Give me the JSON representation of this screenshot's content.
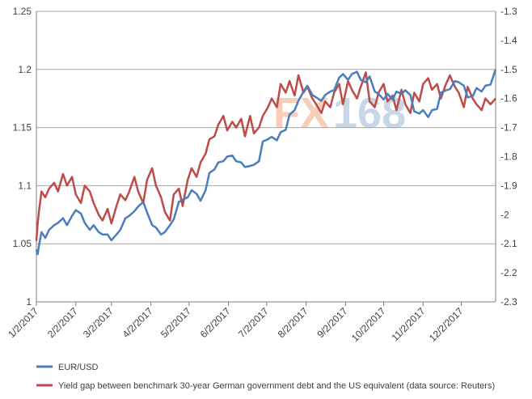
{
  "chart_data": {
    "type": "line",
    "watermark": "FX168",
    "colors": {
      "eurusd": "#4a7ebb",
      "yield_gap": "#be4b48",
      "grid": "#a6a6a6",
      "axis": "#808080"
    },
    "left_axis": {
      "ylim": [
        1.0,
        1.25
      ],
      "ticks": [
        "1.25",
        "1.2",
        "1.15",
        "1.1",
        "1.05",
        "1"
      ]
    },
    "right_axis": {
      "ylim": [
        -2.3,
        -1.3
      ],
      "ticks": [
        "-1.3",
        "-1.4",
        "-1.5",
        "-1.6",
        "-1.7",
        "-1.8",
        "-1.9",
        "-2",
        "-2.1",
        "-2.2",
        "-2.3"
      ]
    },
    "x_axis": {
      "xlim": [
        "2017-01-02",
        "2017-12-29"
      ],
      "tick_labels": [
        "1/2/2017",
        "2/2/2017",
        "3/2/2017",
        "4/2/2017",
        "5/2/2017",
        "6/2/2017",
        "7/2/2017",
        "8/2/2017",
        "9/2/2017",
        "10/2/2017",
        "11/2/2017",
        "12/2/2017"
      ]
    },
    "legend": {
      "position": "bottom"
    },
    "series": [
      {
        "name": "EUR/USD",
        "axis": "left",
        "x": [
          "2017-01-02",
          "2017-01-03",
          "2017-01-04",
          "2017-01-06",
          "2017-01-09",
          "2017-01-12",
          "2017-01-16",
          "2017-01-19",
          "2017-01-23",
          "2017-01-26",
          "2017-01-30",
          "2017-02-02",
          "2017-02-06",
          "2017-02-09",
          "2017-02-13",
          "2017-02-16",
          "2017-02-20",
          "2017-02-23",
          "2017-02-27",
          "2017-03-02",
          "2017-03-06",
          "2017-03-09",
          "2017-03-13",
          "2017-03-16",
          "2017-03-20",
          "2017-03-23",
          "2017-03-27",
          "2017-03-30",
          "2017-04-03",
          "2017-04-06",
          "2017-04-10",
          "2017-04-13",
          "2017-04-17",
          "2017-04-20",
          "2017-04-24",
          "2017-04-27",
          "2017-05-01",
          "2017-05-04",
          "2017-05-08",
          "2017-05-11",
          "2017-05-15",
          "2017-05-18",
          "2017-05-22",
          "2017-05-25",
          "2017-05-29",
          "2017-06-01",
          "2017-06-05",
          "2017-06-08",
          "2017-06-12",
          "2017-06-15",
          "2017-06-19",
          "2017-06-22",
          "2017-06-26",
          "2017-06-29",
          "2017-07-03",
          "2017-07-06",
          "2017-07-10",
          "2017-07-13",
          "2017-07-17",
          "2017-07-20",
          "2017-07-24",
          "2017-07-27",
          "2017-07-31",
          "2017-08-03",
          "2017-08-07",
          "2017-08-10",
          "2017-08-14",
          "2017-08-17",
          "2017-08-21",
          "2017-08-24",
          "2017-08-28",
          "2017-08-31",
          "2017-09-04",
          "2017-09-07",
          "2017-09-11",
          "2017-09-14",
          "2017-09-18",
          "2017-09-21",
          "2017-09-25",
          "2017-09-28",
          "2017-10-02",
          "2017-10-05",
          "2017-10-09",
          "2017-10-12",
          "2017-10-16",
          "2017-10-19",
          "2017-10-23",
          "2017-10-26",
          "2017-10-30",
          "2017-11-02",
          "2017-11-06",
          "2017-11-09",
          "2017-11-13",
          "2017-11-16",
          "2017-11-20",
          "2017-11-23",
          "2017-11-27",
          "2017-11-30",
          "2017-12-04",
          "2017-12-07",
          "2017-12-11",
          "2017-12-14",
          "2017-12-18",
          "2017-12-21",
          "2017-12-25",
          "2017-12-29"
        ],
        "values": [
          1.045,
          1.041,
          1.048,
          1.06,
          1.055,
          1.062,
          1.066,
          1.068,
          1.072,
          1.066,
          1.074,
          1.079,
          1.076,
          1.068,
          1.062,
          1.066,
          1.06,
          1.058,
          1.058,
          1.053,
          1.058,
          1.062,
          1.072,
          1.074,
          1.078,
          1.082,
          1.086,
          1.077,
          1.066,
          1.064,
          1.058,
          1.06,
          1.066,
          1.071,
          1.086,
          1.088,
          1.09,
          1.096,
          1.093,
          1.087,
          1.096,
          1.111,
          1.114,
          1.12,
          1.121,
          1.125,
          1.126,
          1.121,
          1.12,
          1.116,
          1.117,
          1.118,
          1.121,
          1.138,
          1.14,
          1.142,
          1.139,
          1.146,
          1.148,
          1.161,
          1.165,
          1.173,
          1.181,
          1.186,
          1.178,
          1.176,
          1.173,
          1.178,
          1.181,
          1.182,
          1.193,
          1.196,
          1.191,
          1.196,
          1.198,
          1.191,
          1.189,
          1.194,
          1.181,
          1.179,
          1.174,
          1.179,
          1.174,
          1.181,
          1.179,
          1.182,
          1.178,
          1.164,
          1.162,
          1.165,
          1.159,
          1.165,
          1.166,
          1.18,
          1.182,
          1.183,
          1.19,
          1.189,
          1.186,
          1.176,
          1.177,
          1.184,
          1.181,
          1.186,
          1.187,
          1.2
        ]
      },
      {
        "name": "Yield gap between benchmark 30-year German government debt and the US equivalent (data source: Reuters)",
        "axis": "right",
        "x": [
          "2017-01-02",
          "2017-01-03",
          "2017-01-04",
          "2017-01-06",
          "2017-01-09",
          "2017-01-12",
          "2017-01-16",
          "2017-01-19",
          "2017-01-23",
          "2017-01-26",
          "2017-01-30",
          "2017-02-02",
          "2017-02-06",
          "2017-02-09",
          "2017-02-13",
          "2017-02-16",
          "2017-02-20",
          "2017-02-23",
          "2017-02-27",
          "2017-03-02",
          "2017-03-06",
          "2017-03-09",
          "2017-03-13",
          "2017-03-16",
          "2017-03-20",
          "2017-03-23",
          "2017-03-27",
          "2017-03-30",
          "2017-04-03",
          "2017-04-06",
          "2017-04-10",
          "2017-04-13",
          "2017-04-17",
          "2017-04-20",
          "2017-04-24",
          "2017-04-27",
          "2017-05-01",
          "2017-05-04",
          "2017-05-08",
          "2017-05-11",
          "2017-05-15",
          "2017-05-18",
          "2017-05-22",
          "2017-05-25",
          "2017-05-29",
          "2017-06-01",
          "2017-06-05",
          "2017-06-08",
          "2017-06-12",
          "2017-06-15",
          "2017-06-19",
          "2017-06-22",
          "2017-06-26",
          "2017-06-29",
          "2017-07-03",
          "2017-07-06",
          "2017-07-10",
          "2017-07-13",
          "2017-07-17",
          "2017-07-20",
          "2017-07-24",
          "2017-07-27",
          "2017-07-31",
          "2017-08-03",
          "2017-08-07",
          "2017-08-10",
          "2017-08-14",
          "2017-08-17",
          "2017-08-21",
          "2017-08-24",
          "2017-08-28",
          "2017-08-31",
          "2017-09-04",
          "2017-09-07",
          "2017-09-11",
          "2017-09-14",
          "2017-09-18",
          "2017-09-21",
          "2017-09-25",
          "2017-09-28",
          "2017-10-02",
          "2017-10-05",
          "2017-10-09",
          "2017-10-12",
          "2017-10-16",
          "2017-10-19",
          "2017-10-23",
          "2017-10-26",
          "2017-10-30",
          "2017-11-02",
          "2017-11-06",
          "2017-11-09",
          "2017-11-13",
          "2017-11-16",
          "2017-11-20",
          "2017-11-23",
          "2017-11-27",
          "2017-11-30",
          "2017-12-04",
          "2017-12-07",
          "2017-12-11",
          "2017-12-14",
          "2017-12-18",
          "2017-12-21",
          "2017-12-25",
          "2017-12-29"
        ],
        "values": [
          -2.09,
          -2.03,
          -1.99,
          -1.92,
          -1.94,
          -1.91,
          -1.89,
          -1.92,
          -1.86,
          -1.9,
          -1.87,
          -1.93,
          -1.96,
          -1.9,
          -1.92,
          -1.96,
          -2.0,
          -2.02,
          -1.98,
          -2.03,
          -1.97,
          -1.93,
          -1.95,
          -1.92,
          -1.87,
          -1.92,
          -1.96,
          -1.88,
          -1.84,
          -1.9,
          -1.94,
          -1.99,
          -2.02,
          -1.93,
          -1.91,
          -1.97,
          -1.88,
          -1.84,
          -1.87,
          -1.82,
          -1.79,
          -1.74,
          -1.73,
          -1.69,
          -1.66,
          -1.71,
          -1.68,
          -1.7,
          -1.67,
          -1.73,
          -1.66,
          -1.72,
          -1.7,
          -1.66,
          -1.63,
          -1.6,
          -1.63,
          -1.55,
          -1.58,
          -1.54,
          -1.59,
          -1.52,
          -1.58,
          -1.56,
          -1.6,
          -1.62,
          -1.65,
          -1.61,
          -1.63,
          -1.58,
          -1.55,
          -1.62,
          -1.54,
          -1.57,
          -1.6,
          -1.56,
          -1.51,
          -1.61,
          -1.63,
          -1.58,
          -1.55,
          -1.61,
          -1.59,
          -1.64,
          -1.57,
          -1.62,
          -1.65,
          -1.58,
          -1.61,
          -1.55,
          -1.53,
          -1.57,
          -1.55,
          -1.6,
          -1.55,
          -1.52,
          -1.56,
          -1.58,
          -1.63,
          -1.56,
          -1.6,
          -1.62,
          -1.64,
          -1.6,
          -1.62,
          -1.6
        ]
      }
    ]
  }
}
